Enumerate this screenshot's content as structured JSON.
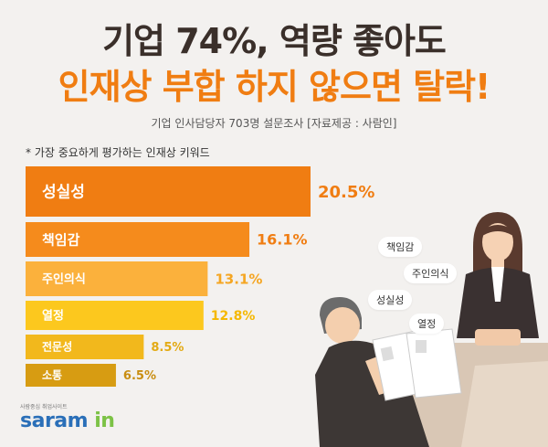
{
  "header": {
    "title_line1": "기업 74%, 역량 좋아도",
    "title_line2": "인재상 부합 하지 않으면 탈락!",
    "subtitle": "기업 인사담당자 703명 설문조사 [자료제공 : 사람인]"
  },
  "chart_data": {
    "type": "bar",
    "orientation": "horizontal",
    "title": "* 가장 중요하게 평가하는 인재상 키워드",
    "categories": [
      "성실성",
      "책임감",
      "주인의식",
      "열정",
      "전문성",
      "소통"
    ],
    "values": [
      20.5,
      16.1,
      13.1,
      12.8,
      8.5,
      6.5
    ],
    "value_labels": [
      "20.5%",
      "16.1%",
      "13.1%",
      "12.8%",
      "8.5%",
      "6.5%"
    ],
    "unit": "%",
    "colors": [
      "#f07d12",
      "#f58b1c",
      "#fbb13c",
      "#fcc81e",
      "#f2b81c",
      "#d79c12"
    ],
    "value_label_colors": [
      "#f07d12",
      "#f07d12",
      "#f5a623",
      "#f5b800",
      "#e3aa14",
      "#c98d10"
    ],
    "grid": false,
    "axes_visible": false
  },
  "illustration": {
    "bubbles": [
      "책임감",
      "주인의식",
      "성실성",
      "열정"
    ]
  },
  "logo": {
    "tagline": "사람중심 취업사이트",
    "word_main": "saram",
    "word_accent": "in"
  }
}
